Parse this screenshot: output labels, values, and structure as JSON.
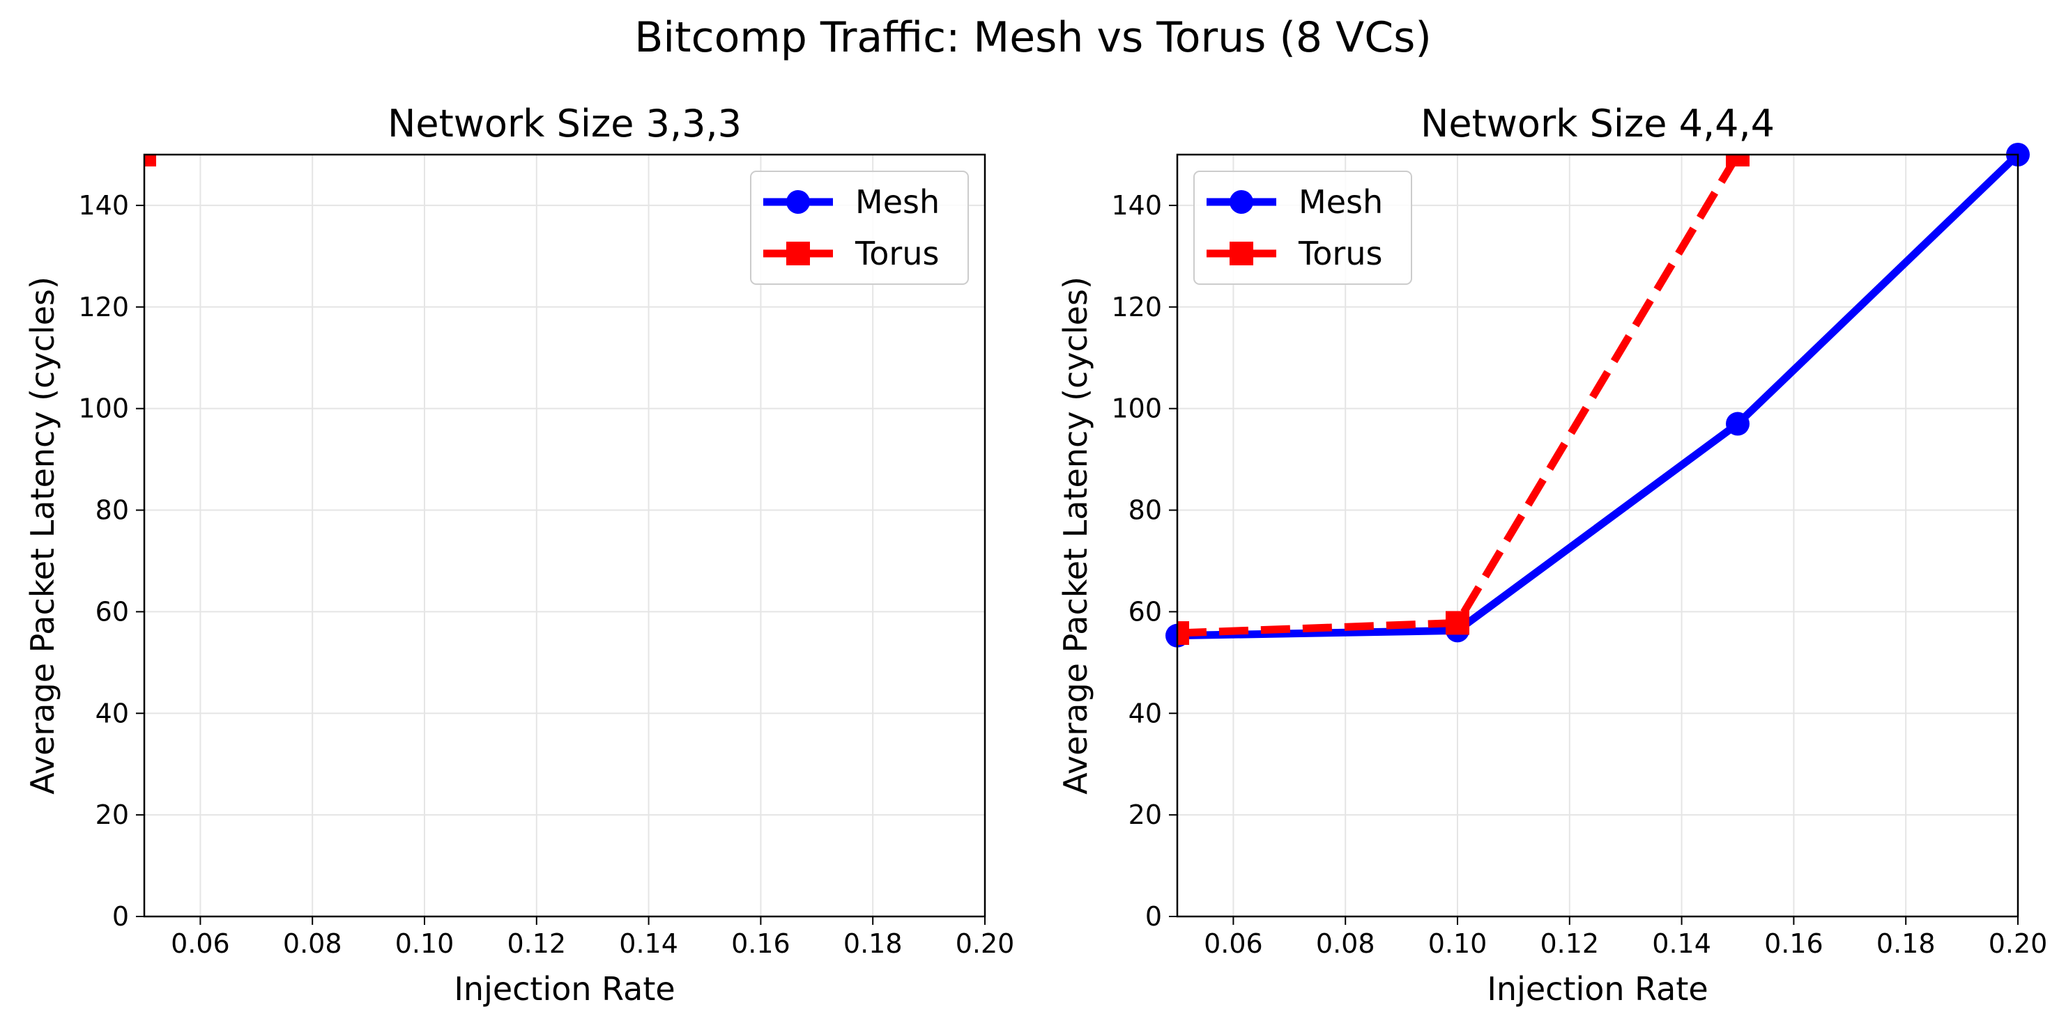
{
  "figure": {
    "suptitle": "Bitcomp Traffic: Mesh vs Torus (8 VCs)"
  },
  "colors": {
    "mesh": "#0000ff",
    "torus": "#ff0000",
    "grid": "#e5e5e5",
    "axes": "#000000"
  },
  "icons": {
    "mesh_marker": "circle",
    "torus_marker": "square"
  },
  "chart_data": [
    {
      "type": "line",
      "title": "Network Size 3,3,3",
      "xlabel": "Injection Rate",
      "ylabel": "Average Packet Latency (cycles)",
      "xlim": [
        0.05,
        0.2
      ],
      "ylim": [
        0,
        150
      ],
      "xticks": [
        "0.06",
        "0.08",
        "0.10",
        "0.12",
        "0.14",
        "0.16",
        "0.18",
        "0.20"
      ],
      "yticks": [
        "0",
        "20",
        "40",
        "60",
        "80",
        "100",
        "120",
        "140"
      ],
      "grid": true,
      "legend_position": "upper right",
      "series": [
        {
          "name": "Mesh",
          "x": [],
          "y": [],
          "style": "solid",
          "marker": "circle"
        },
        {
          "name": "Torus",
          "x": [
            0.05
          ],
          "y": [
            150
          ],
          "style": "dashed",
          "marker": "square"
        }
      ]
    },
    {
      "type": "line",
      "title": "Network Size 4,4,4",
      "xlabel": "Injection Rate",
      "ylabel": "Average Packet Latency (cycles)",
      "xlim": [
        0.05,
        0.2
      ],
      "ylim": [
        0,
        150
      ],
      "xticks": [
        "0.06",
        "0.08",
        "0.10",
        "0.12",
        "0.14",
        "0.16",
        "0.18",
        "0.20"
      ],
      "yticks": [
        "0",
        "20",
        "40",
        "60",
        "80",
        "100",
        "120",
        "140"
      ],
      "grid": true,
      "legend_position": "upper left",
      "series": [
        {
          "name": "Mesh",
          "x": [
            0.05,
            0.1,
            0.15,
            0.2
          ],
          "y": [
            55.3,
            56.3,
            97.0,
            150
          ],
          "style": "solid",
          "marker": "circle"
        },
        {
          "name": "Torus",
          "x": [
            0.05,
            0.1,
            0.15
          ],
          "y": [
            55.8,
            57.8,
            150
          ],
          "style": "dashed",
          "marker": "square"
        }
      ]
    }
  ]
}
